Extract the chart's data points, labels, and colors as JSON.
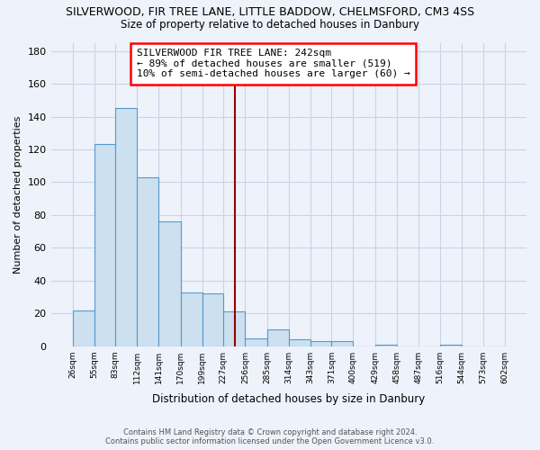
{
  "title_line1": "SILVERWOOD, FIR TREE LANE, LITTLE BADDOW, CHELMSFORD, CM3 4SS",
  "title_line2": "Size of property relative to detached houses in Danbury",
  "xlabel": "Distribution of detached houses by size in Danbury",
  "ylabel": "Number of detached properties",
  "bin_edges": [
    26,
    55,
    83,
    112,
    141,
    170,
    199,
    227,
    256,
    285,
    314,
    343,
    371,
    400,
    429,
    458,
    487,
    516,
    544,
    573,
    602
  ],
  "bar_heights": [
    22,
    123,
    145,
    103,
    76,
    33,
    32,
    21,
    5,
    10,
    4,
    3,
    3,
    0,
    1,
    0,
    0,
    1,
    0,
    0
  ],
  "bar_color": "#cce0f0",
  "bar_edge_color": "#5599cc",
  "vline_x": 242,
  "vline_color": "#990000",
  "annotation_line1": "SILVERWOOD FIR TREE LANE: 242sqm",
  "annotation_line2": "← 89% of detached houses are smaller (519)",
  "annotation_line3": "10% of semi-detached houses are larger (60) →",
  "ylim": [
    0,
    185
  ],
  "yticks": [
    0,
    20,
    40,
    60,
    80,
    100,
    120,
    140,
    160,
    180
  ],
  "tick_labels": [
    "26sqm",
    "55sqm",
    "83sqm",
    "112sqm",
    "141sqm",
    "170sqm",
    "199sqm",
    "227sqm",
    "256sqm",
    "285sqm",
    "314sqm",
    "343sqm",
    "371sqm",
    "400sqm",
    "429sqm",
    "458sqm",
    "487sqm",
    "516sqm",
    "544sqm",
    "573sqm",
    "602sqm"
  ],
  "footer_line1": "Contains HM Land Registry data © Crown copyright and database right 2024.",
  "footer_line2": "Contains public sector information licensed under the Open Government Licence v3.0.",
  "bg_color": "#eef2fa",
  "grid_color": "#c8d4e8"
}
